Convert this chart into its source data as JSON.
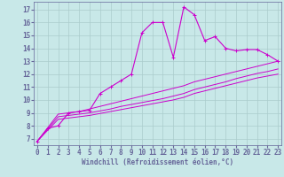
{
  "xlabel": "Windchill (Refroidissement éolien,°C)",
  "bg_color": "#c8e8e8",
  "line_color": "#cc00cc",
  "grid_color": "#aacccc",
  "axis_color": "#666699",
  "x_ticks": [
    0,
    1,
    2,
    3,
    4,
    5,
    6,
    7,
    8,
    9,
    10,
    11,
    12,
    13,
    14,
    15,
    16,
    17,
    18,
    19,
    20,
    21,
    22,
    23
  ],
  "y_ticks": [
    7,
    8,
    9,
    10,
    11,
    12,
    13,
    14,
    15,
    16,
    17
  ],
  "xlim": [
    -0.3,
    23.3
  ],
  "ylim": [
    6.5,
    17.6
  ],
  "main": {
    "x": [
      0,
      1,
      2,
      3,
      4,
      5,
      6,
      7,
      8,
      9,
      10,
      11,
      12,
      13,
      14,
      15,
      16,
      17,
      18,
      19,
      20,
      21,
      22,
      23
    ],
    "y": [
      6.8,
      7.8,
      8.0,
      9.0,
      9.1,
      9.2,
      10.5,
      11.0,
      11.5,
      12.0,
      15.2,
      16.0,
      16.0,
      13.3,
      17.2,
      16.6,
      14.6,
      14.9,
      14.0,
      13.8,
      13.9,
      13.9,
      13.5,
      13.0
    ]
  },
  "line2": {
    "x": [
      0,
      2,
      3,
      4,
      5,
      6,
      7,
      8,
      9,
      10,
      11,
      12,
      13,
      14,
      15,
      16,
      17,
      18,
      19,
      20,
      21,
      22,
      23
    ],
    "y": [
      6.8,
      8.9,
      9.0,
      9.1,
      9.3,
      9.5,
      9.7,
      9.9,
      10.1,
      10.3,
      10.5,
      10.7,
      10.9,
      11.1,
      11.4,
      11.6,
      11.8,
      12.0,
      12.2,
      12.4,
      12.6,
      12.8,
      13.0
    ]
  },
  "line3": {
    "x": [
      0,
      2,
      3,
      4,
      5,
      6,
      7,
      8,
      9,
      10,
      11,
      12,
      13,
      14,
      15,
      16,
      17,
      18,
      19,
      20,
      21,
      22,
      23
    ],
    "y": [
      6.8,
      8.7,
      8.8,
      8.9,
      9.0,
      9.15,
      9.3,
      9.5,
      9.65,
      9.8,
      9.95,
      10.1,
      10.3,
      10.5,
      10.8,
      11.0,
      11.2,
      11.4,
      11.65,
      11.85,
      12.05,
      12.2,
      12.4
    ]
  },
  "line4": {
    "x": [
      0,
      2,
      3,
      4,
      5,
      6,
      7,
      8,
      9,
      10,
      11,
      12,
      13,
      14,
      15,
      16,
      17,
      18,
      19,
      20,
      21,
      22,
      23
    ],
    "y": [
      6.8,
      8.5,
      8.6,
      8.7,
      8.8,
      8.95,
      9.1,
      9.25,
      9.4,
      9.55,
      9.7,
      9.85,
      10.0,
      10.2,
      10.5,
      10.7,
      10.9,
      11.1,
      11.3,
      11.5,
      11.7,
      11.85,
      12.0
    ]
  },
  "tick_fontsize": 5.5,
  "xlabel_fontsize": 5.5,
  "marker_size": 2.5
}
